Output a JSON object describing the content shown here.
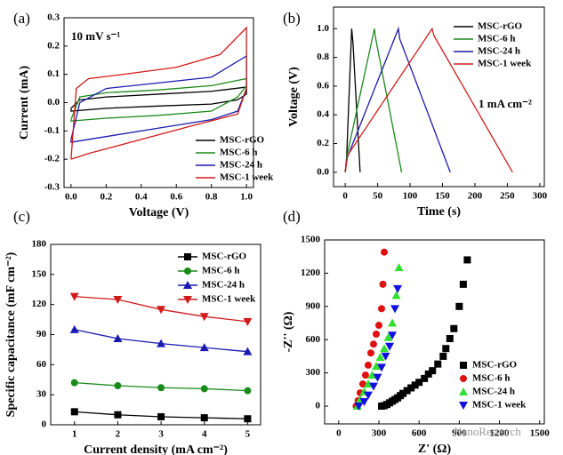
{
  "chart_data": [
    {
      "type": "line",
      "panel": "(a)",
      "annotation": "10 mV s⁻¹",
      "xlabel": "Voltage (V)",
      "ylabel": "Current (mA)",
      "xlim": [
        -0.04,
        1.04
      ],
      "ylim": [
        -0.3,
        0.3
      ],
      "xticks": [
        {
          "value": 0,
          "label": "0.0"
        },
        0.2,
        0.4,
        0.6,
        0.8,
        {
          "value": 1,
          "label": "1.0"
        }
      ],
      "yticks": [
        -0.3,
        -0.2,
        -0.1,
        {
          "value": 0,
          "label": "0.0"
        },
        0.1,
        0.2,
        0.3
      ],
      "legend": "lower right",
      "series": [
        {
          "name": "MSC-rGO",
          "color": "#000000",
          "x": [
            0,
            0.05,
            0.2,
            0.5,
            0.8,
            1.0,
            1.0,
            0.95,
            0.8,
            0.5,
            0.2,
            0,
            0
          ],
          "values": [
            -0.02,
            0.01,
            0.02,
            0.03,
            0.04,
            0.055,
            0.03,
            0.01,
            -0.005,
            -0.012,
            -0.02,
            -0.03,
            -0.02
          ]
        },
        {
          "name": "MSC-6 h",
          "color": "#1a8a1a",
          "x": [
            0,
            0.05,
            0.2,
            0.5,
            0.8,
            1.0,
            1.0,
            0.95,
            0.8,
            0.5,
            0.2,
            0,
            0
          ],
          "values": [
            -0.06,
            0.02,
            0.035,
            0.045,
            0.06,
            0.085,
            0.06,
            0.02,
            -0.03,
            -0.045,
            -0.055,
            -0.065,
            -0.06
          ]
        },
        {
          "name": "MSC-24 h",
          "color": "#1a1ab0",
          "x": [
            0,
            0.05,
            0.2,
            0.5,
            0.8,
            1.0,
            1.0,
            0.95,
            0.8,
            0.5,
            0.2,
            0,
            0
          ],
          "values": [
            -0.13,
            0.0,
            0.05,
            0.07,
            0.09,
            0.165,
            0.05,
            -0.03,
            -0.06,
            -0.09,
            -0.12,
            -0.14,
            -0.13
          ]
        },
        {
          "name": "MSC-1 week",
          "color": "#d01a1a",
          "x": [
            0,
            0.03,
            0.1,
            0.3,
            0.6,
            0.85,
            1.0,
            1.0,
            0.95,
            0.7,
            0.4,
            0.1,
            0
          ],
          "values": [
            -0.2,
            0.05,
            0.085,
            0.1,
            0.125,
            0.17,
            0.265,
            0.05,
            -0.04,
            -0.08,
            -0.13,
            -0.18,
            -0.2
          ]
        }
      ]
    },
    {
      "type": "line",
      "panel": "(b)",
      "annotation": "1 mA cm⁻²",
      "xlabel": "Time (s)",
      "ylabel": "Voltage (V)",
      "xlim": [
        -18,
        307
      ],
      "ylim": [
        -0.1,
        1.15
      ],
      "xticks": [
        0,
        50,
        100,
        150,
        200,
        250,
        300
      ],
      "yticks": [
        {
          "value": 0,
          "label": "0.0"
        },
        0.2,
        0.4,
        0.6,
        0.8,
        {
          "value": 1,
          "label": "1.0"
        }
      ],
      "legend": "upper right",
      "series": [
        {
          "name": "MSC-rGO",
          "color": "#000000",
          "x": [
            0,
            2,
            10,
            12,
            23
          ],
          "values": [
            0,
            0.08,
            1.0,
            0.9,
            0
          ]
        },
        {
          "name": "MSC-6 h",
          "color": "#1a8a1a",
          "x": [
            0,
            2,
            45,
            47,
            87
          ],
          "values": [
            0,
            0.1,
            1.0,
            0.93,
            0
          ]
        },
        {
          "name": "MSC-24 h",
          "color": "#1a1ab0",
          "x": [
            0,
            3,
            82,
            84,
            162
          ],
          "values": [
            0,
            0.1,
            1.0,
            0.93,
            0
          ]
        },
        {
          "name": "MSC-1 week",
          "color": "#d01a1a",
          "x": [
            0,
            4,
            134,
            137,
            258
          ],
          "values": [
            0,
            0.12,
            1.0,
            0.95,
            0
          ]
        }
      ]
    },
    {
      "type": "line",
      "panel": "(c)",
      "xlabel": "Current density  (mA cm⁻²)",
      "ylabel": "Specific capacitance (mF cm⁻²)",
      "xlim": [
        0.45,
        5.3
      ],
      "ylim": [
        0,
        180
      ],
      "xticks": [
        1,
        2,
        3,
        4,
        5
      ],
      "yticks": [
        0,
        30,
        60,
        90,
        120,
        150,
        180
      ],
      "legend": "upper right",
      "series": [
        {
          "name": "MSC-rGO",
          "color": "#000000",
          "marker": "square",
          "x": [
            1,
            2,
            3,
            4,
            5
          ],
          "values": [
            13,
            10,
            8,
            7,
            6
          ]
        },
        {
          "name": "MSC-6 h",
          "color": "#1a8a1a",
          "marker": "circle",
          "x": [
            1,
            2,
            3,
            4,
            5
          ],
          "values": [
            42,
            39,
            37,
            36,
            34
          ]
        },
        {
          "name": "MSC-24 h",
          "color": "#1a1ab0",
          "marker": "triangle-up",
          "x": [
            1,
            2,
            3,
            4,
            5
          ],
          "values": [
            95,
            86,
            81,
            77,
            73
          ]
        },
        {
          "name": "MSC-1 week",
          "color": "#d01a1a",
          "marker": "triangle-down",
          "x": [
            1,
            2,
            3,
            4,
            5
          ],
          "values": [
            128,
            125,
            115,
            108,
            103
          ]
        }
      ]
    },
    {
      "type": "scatter",
      "panel": "(d)",
      "xlabel": "Z' (Ω)",
      "ylabel": "-Z'' (Ω)",
      "watermark": "NanoResearch",
      "xlim": [
        -105,
        1535
      ],
      "ylim": [
        -160,
        1500
      ],
      "xticks": [
        0,
        300,
        600,
        900,
        1200,
        1500
      ],
      "yticks": [
        0,
        300,
        600,
        900,
        1200,
        1500
      ],
      "legend": "lower right",
      "series": [
        {
          "name": "MSC-rGO",
          "color": "#000000",
          "marker": "square",
          "x": [
            320,
            340,
            360,
            380,
            400,
            420,
            440,
            460,
            480,
            510,
            540,
            570,
            600,
            640,
            670,
            700,
            740,
            780,
            800,
            830,
            860,
            900,
            930,
            960
          ],
          "values": [
            0,
            5,
            15,
            30,
            45,
            60,
            75,
            95,
            115,
            140,
            165,
            190,
            215,
            250,
            290,
            320,
            380,
            450,
            520,
            610,
            700,
            900,
            1100,
            1320
          ]
        },
        {
          "name": "MSC-6 h",
          "color": "#e01010",
          "marker": "circle",
          "x": [
            130,
            145,
            160,
            180,
            200,
            220,
            240,
            260,
            280,
            300,
            320,
            330,
            340
          ],
          "values": [
            0,
            50,
            120,
            200,
            280,
            370,
            480,
            560,
            650,
            730,
            880,
            1100,
            1390
          ]
        },
        {
          "name": "MSC-24 h",
          "color": "#30e030",
          "marker": "triangle-up",
          "x": [
            140,
            160,
            190,
            220,
            250,
            280,
            310,
            340,
            370,
            400,
            430,
            450
          ],
          "values": [
            0,
            60,
            130,
            200,
            280,
            360,
            440,
            520,
            620,
            750,
            1000,
            1250
          ]
        },
        {
          "name": "MSC-1 week",
          "color": "#1010e0",
          "marker": "triangle-down",
          "x": [
            150,
            190,
            220,
            260,
            290,
            320,
            350,
            380,
            400,
            420,
            440
          ],
          "values": [
            0,
            40,
            100,
            180,
            260,
            350,
            450,
            540,
            640,
            880,
            1060
          ]
        }
      ]
    }
  ]
}
